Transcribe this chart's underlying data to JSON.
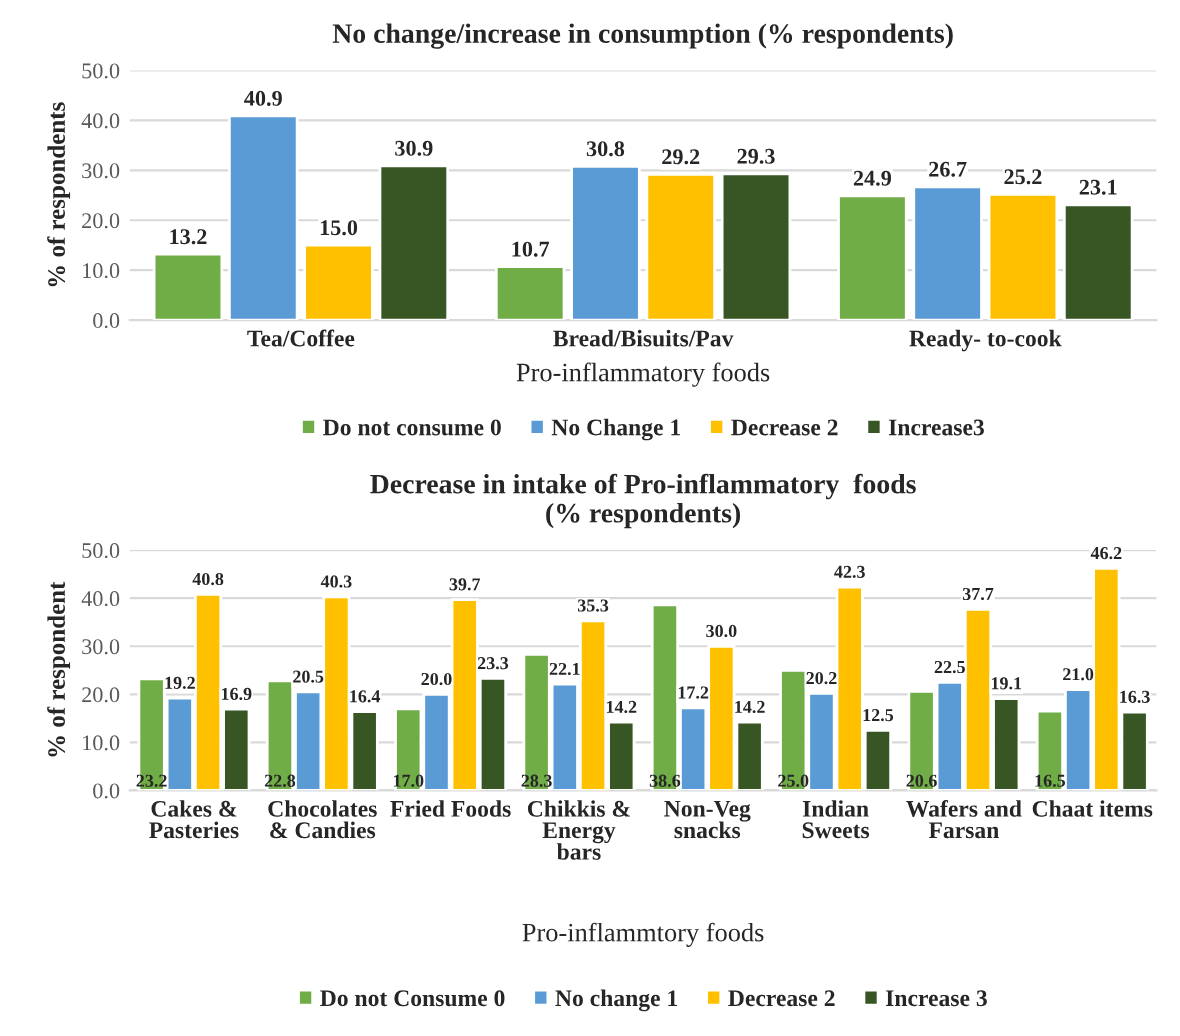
{
  "chart_data": [
    {
      "type": "bar",
      "title": "No change/increase in consumption (% respondents)",
      "xlabel": "Pro-inflammatory foods",
      "ylabel": "% of respondents",
      "categories": [
        "Tea/Coffee",
        "Bread/Bisuits/Pav",
        "Ready- to-cook"
      ],
      "series": [
        {
          "name": "Do not consume 0",
          "color": "#70ad47",
          "values": [
            13.2,
            10.7,
            24.9
          ],
          "value_labels": [
            "13.2",
            "10.7",
            "24.9"
          ]
        },
        {
          "name": "No Change 1",
          "color": "#5b9bd5",
          "values": [
            40.9,
            30.8,
            26.7
          ],
          "value_labels": [
            "40.9",
            "30.8",
            "26.7"
          ]
        },
        {
          "name": "Decrease 2",
          "color": "#ffc000",
          "values": [
            15.0,
            29.2,
            25.2
          ],
          "value_labels": [
            "15.0",
            "29.2",
            "25.2"
          ]
        },
        {
          "name": "Increase3",
          "color": "#375623",
          "values": [
            30.9,
            29.3,
            23.1
          ],
          "value_labels": [
            "30.9",
            "29.3",
            "23.1"
          ]
        }
      ],
      "ylim": [
        0,
        50
      ],
      "yticks": [
        {
          "value": 0,
          "label": "0.0"
        },
        {
          "value": 10,
          "label": "10.0"
        },
        {
          "value": 20,
          "label": "20.0"
        },
        {
          "value": 30,
          "label": "30.0"
        },
        {
          "value": 40,
          "label": "40.0"
        },
        {
          "value": 50,
          "label": "50.0"
        }
      ],
      "grid": "y",
      "legend": "bottom"
    },
    {
      "type": "bar",
      "title": "Decrease in intake of Pro-inflammatory  foods\n(% respondents)",
      "xlabel": "Pro-inflammtory foods",
      "ylabel": "% of respondent",
      "categories": [
        "Cakes &\nPasteries",
        "Chocolates\n& Candies",
        "Fried Foods",
        "Chikkis &\nEnergy\nbars",
        "Non-Veg\nsnacks",
        "Indian\nSweets",
        "Wafers and\nFarsan",
        "Chaat items"
      ],
      "series": [
        {
          "name": "Do not Consume 0",
          "color": "#70ad47",
          "values": [
            23.2,
            22.8,
            17.0,
            28.3,
            38.6,
            25.0,
            20.6,
            16.5
          ],
          "value_labels": [
            "23.2",
            "22.8",
            "17.0",
            "28.3",
            "38.6",
            "25.0",
            "20.6",
            "16.5"
          ]
        },
        {
          "name": "No change 1",
          "color": "#5b9bd5",
          "values": [
            19.2,
            20.5,
            20.0,
            22.1,
            17.2,
            20.2,
            22.5,
            21.0
          ],
          "value_labels": [
            "19.2",
            "20.5",
            "20.0",
            "22.1",
            "17.2",
            "20.2",
            "22.5",
            "21.0"
          ]
        },
        {
          "name": "Decrease 2",
          "color": "#ffc000",
          "values": [
            40.8,
            40.3,
            39.7,
            35.3,
            30.0,
            42.3,
            37.7,
            46.2
          ],
          "value_labels": [
            "40.8",
            "40.3",
            "39.7",
            "35.3",
            "30.0",
            "42.3",
            "37.7",
            "46.2"
          ]
        },
        {
          "name": "Increase 3",
          "color": "#375623",
          "values": [
            16.9,
            16.4,
            23.3,
            14.2,
            14.2,
            12.5,
            19.1,
            16.3
          ],
          "value_labels": [
            "16.9",
            "16.4",
            "23.3",
            "14.2",
            "14.2",
            "12.5",
            "19.1",
            "16.3"
          ]
        }
      ],
      "ylim": [
        0,
        50
      ],
      "yticks": [
        {
          "value": 0,
          "label": "0.0"
        },
        {
          "value": 10,
          "label": "10.0"
        },
        {
          "value": 20,
          "label": "20.0"
        },
        {
          "value": 30,
          "label": "30.0"
        },
        {
          "value": 40,
          "label": "40.0"
        },
        {
          "value": 50,
          "label": "50.0"
        }
      ],
      "grid": "y",
      "legend": "bottom"
    }
  ]
}
